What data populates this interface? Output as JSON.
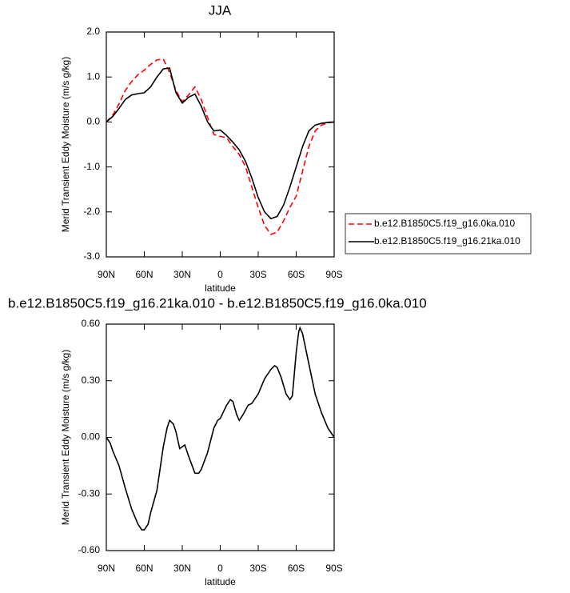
{
  "chart_data": [
    {
      "type": "line",
      "title": "JJA",
      "xlabel": "latitude",
      "ylabel": "Merid Transient Eddy Moisture (m/s g/kg)",
      "x": [
        90,
        85,
        80,
        75,
        70,
        65,
        60,
        55,
        50,
        45,
        40,
        35,
        30,
        25,
        20,
        15,
        10,
        5,
        0,
        -5,
        -10,
        -15,
        -20,
        -25,
        -30,
        -35,
        -40,
        -45,
        -50,
        -55,
        -60,
        -65,
        -70,
        -75,
        -80,
        -85,
        -90
      ],
      "xlim": [
        90,
        -90
      ],
      "xticks": [
        {
          "value": 90,
          "label": "90N"
        },
        {
          "value": 60,
          "label": "60N"
        },
        {
          "value": 30,
          "label": "30N"
        },
        0,
        {
          "value": -30,
          "label": "30S"
        },
        {
          "value": -60,
          "label": "60S"
        },
        {
          "value": -90,
          "label": "90S"
        }
      ],
      "ylim": [
        -3,
        2
      ],
      "yticks": [
        {
          "value": 2,
          "label": "2.0"
        },
        {
          "value": 1,
          "label": "1.0"
        },
        {
          "value": 0,
          "label": "0.0"
        },
        {
          "value": -1,
          "label": "-1.0"
        },
        {
          "value": -2,
          "label": "-2.0"
        },
        {
          "value": -3,
          "label": "-3.0"
        }
      ],
      "legend": "right",
      "series": [
        {
          "name": "b.e12.B1850C5.f19_g16.0ka.010",
          "color": "#ff0000",
          "dash": true,
          "values": [
            0,
            0.15,
            0.4,
            0.7,
            0.9,
            1.05,
            1.15,
            1.28,
            1.38,
            1.4,
            1.1,
            0.7,
            0.45,
            0.6,
            0.78,
            0.5,
            0.1,
            -0.28,
            -0.32,
            -0.35,
            -0.55,
            -0.72,
            -1.0,
            -1.45,
            -1.9,
            -2.3,
            -2.5,
            -2.45,
            -2.2,
            -1.9,
            -1.65,
            -1.1,
            -0.55,
            -0.2,
            -0.07,
            -0.02,
            0
          ]
        },
        {
          "name": "b.e12.B1850C5.f19_g16.21ka.010",
          "color": "#000000",
          "dash": false,
          "values": [
            0,
            0.12,
            0.3,
            0.5,
            0.6,
            0.63,
            0.65,
            0.78,
            1.0,
            1.18,
            1.2,
            0.65,
            0.42,
            0.55,
            0.62,
            0.35,
            0.0,
            -0.2,
            -0.18,
            -0.3,
            -0.45,
            -0.62,
            -0.88,
            -1.25,
            -1.68,
            -2.0,
            -2.15,
            -2.1,
            -1.85,
            -1.45,
            -1.0,
            -0.55,
            -0.2,
            -0.07,
            -0.03,
            -0.01,
            0
          ]
        }
      ]
    },
    {
      "type": "line",
      "title": "b.e12.B1850C5.f19_g16.21ka.010 - b.e12.B1850C5.f19_g16.0ka.010",
      "xlabel": "latitude",
      "ylabel": "Merid Transient Eddy Moisture (m/s g/kg)",
      "x": [
        90,
        87,
        85,
        80,
        75,
        70,
        65,
        62,
        60,
        57,
        55,
        50,
        45,
        42,
        40,
        37,
        35,
        32,
        28,
        25,
        20,
        17,
        15,
        10,
        5,
        2,
        0,
        -5,
        -8,
        -10,
        -13,
        -15,
        -18,
        -22,
        -25,
        -30,
        -35,
        -40,
        -43,
        -45,
        -48,
        -52,
        -55,
        -57,
        -60,
        -62,
        -63,
        -65,
        -70,
        -75,
        -80,
        -85,
        -90
      ],
      "xlim": [
        90,
        -90
      ],
      "xticks": [
        {
          "value": 90,
          "label": "90N"
        },
        {
          "value": 60,
          "label": "60N"
        },
        {
          "value": 30,
          "label": "30N"
        },
        0,
        {
          "value": -30,
          "label": "30S"
        },
        {
          "value": -60,
          "label": "60S"
        },
        {
          "value": -90,
          "label": "90S"
        }
      ],
      "ylim": [
        -0.6,
        0.6
      ],
      "yticks": [
        {
          "value": 0.6,
          "label": "0.60"
        },
        {
          "value": 0.3,
          "label": "0.30"
        },
        {
          "value": 0,
          "label": "0.00"
        },
        {
          "value": -0.3,
          "label": "-0.30"
        },
        {
          "value": -0.6,
          "label": "-0.60"
        }
      ],
      "series": [
        {
          "color": "#000000",
          "dash": false,
          "values": [
            0,
            -0.03,
            -0.07,
            -0.15,
            -0.27,
            -0.38,
            -0.46,
            -0.49,
            -0.49,
            -0.46,
            -0.4,
            -0.28,
            -0.05,
            0.05,
            0.09,
            0.07,
            0.03,
            -0.06,
            -0.04,
            -0.1,
            -0.19,
            -0.19,
            -0.17,
            -0.08,
            0.05,
            0.09,
            0.1,
            0.17,
            0.2,
            0.19,
            0.12,
            0.09,
            0.12,
            0.17,
            0.18,
            0.23,
            0.31,
            0.36,
            0.38,
            0.37,
            0.32,
            0.23,
            0.2,
            0.22,
            0.45,
            0.56,
            0.58,
            0.55,
            0.39,
            0.23,
            0.13,
            0.05,
            0
          ]
        }
      ]
    }
  ]
}
